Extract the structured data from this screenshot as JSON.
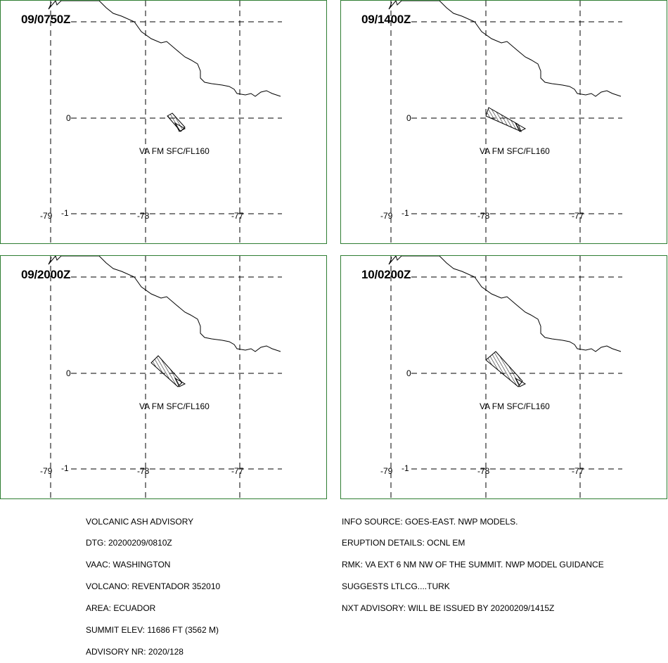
{
  "panels": [
    {
      "time": "09/0750Z",
      "label": "VA FM SFC/FL160"
    },
    {
      "time": "09/1400Z",
      "label": "VA FM SFC/FL160"
    },
    {
      "time": "09/2000Z",
      "label": "VA FM SFC/FL160"
    },
    {
      "time": "10/0200Z",
      "label": "VA FM SFC/FL160"
    }
  ],
  "axis_labels": {
    "lon_w": "-79",
    "lon_mid": "-78",
    "lon_e": "-77",
    "lat_0": "0",
    "lat_s": "-1"
  },
  "advisory_left": [
    "VOLCANIC ASH ADVISORY",
    "DTG: 20200209/0810Z",
    "VAAC: WASHINGTON",
    "VOLCANO: REVENTADOR 352010",
    "AREA: ECUADOR",
    "SUMMIT ELEV: 11686 FT (3562 M)",
    "ADVISORY NR: 2020/128"
  ],
  "advisory_right": [
    "INFO SOURCE: GOES-EAST. NWP MODELS.",
    "ERUPTION DETAILS: OCNL EM",
    "RMK: VA EXT 6 NM NW OF THE SUMMIT. NWP MODEL GUIDANCE",
    "SUGGESTS LTLCG....TURK",
    "NXT ADVISORY: WILL BE ISSUED BY 20200209/1415Z"
  ]
}
